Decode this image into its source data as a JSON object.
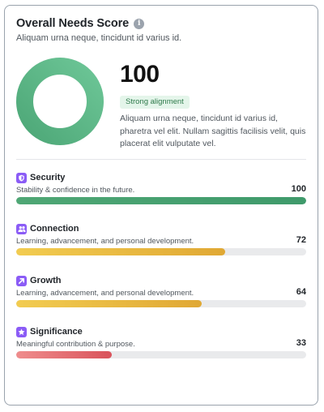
{
  "card": {
    "title": "Overall Needs Score",
    "info_icon": "info-icon",
    "subtitle": "Aliquam urna neque, tincidunt id varius id."
  },
  "summary": {
    "score": "100",
    "score_fraction": 1.0,
    "badge": "Strong alignment",
    "description": "Aliquam urna neque, tincidunt id varius id, pharetra vel elit. Nullam sagittis facilisis velit, quis placerat elit vulputate vel.",
    "donut_color": "#5bbb88"
  },
  "metrics": [
    {
      "icon": "shield-icon",
      "label": "Security",
      "description": "Stability & confidence in the future.",
      "value": "100",
      "fraction": 1.0,
      "color": "green"
    },
    {
      "icon": "people-icon",
      "label": "Connection",
      "description": "Learning, advancement, and personal development.",
      "value": "72",
      "fraction": 0.72,
      "color": "yellow"
    },
    {
      "icon": "arrow-up-right-icon",
      "label": "Growth",
      "description": "Learning, advancement, and personal development.",
      "value": "64",
      "fraction": 0.64,
      "color": "yellow"
    },
    {
      "icon": "star-icon",
      "label": "Significance",
      "description": "Meaningful contribution & purpose.",
      "value": "33",
      "fraction": 0.33,
      "color": "red"
    }
  ],
  "colors": {
    "accent_purple": "#8b5cf6",
    "green": "#4fa775",
    "yellow": "#e8b83c",
    "red": "#df6169"
  }
}
